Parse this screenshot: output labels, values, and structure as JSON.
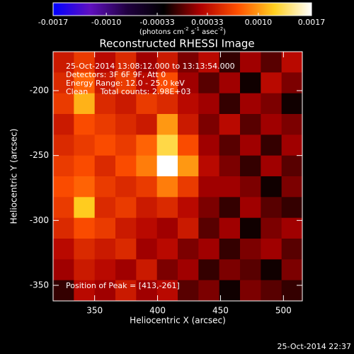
{
  "chart_data": {
    "type": "heatmap",
    "title": "Reconstructed RHESSI Image",
    "xlabel": "Heliocentric X (arcsec)",
    "ylabel": "Heliocentric Y (arcsec)",
    "annotations": [
      "25-Oct-2014 13:08:12.000 to 13:13:54.000",
      "Detectors: 3F 6F 9F, Att 0",
      "Energy Range: 12.0 - 25.0 keV",
      "Clean     Total counts: 2.98E+03"
    ],
    "peak_label": "Position of Peak = [413,-261]",
    "footer": "25-Oct-2014 22:37",
    "colorbar_units": [
      "(photons cm",
      "-2",
      " s",
      "-1",
      " asec",
      "-2",
      ")"
    ],
    "clim": [
      -0.0017,
      0.0017
    ],
    "cticks": [
      -0.0017,
      {
        "value": -0.001,
        "label": "-0.0010"
      },
      -0.00033,
      0.00033,
      {
        "value": 0.001,
        "label": "0.0010"
      },
      0.0017
    ],
    "colormap": [
      "#0000ff",
      "#6010c0",
      "#200040",
      "#000000",
      "#b00000",
      "#ff5000",
      "#ffd020",
      "#ffffff"
    ],
    "xlim": [
      317,
      515
    ],
    "ylim": [
      -362,
      -170
    ],
    "xticks": [
      350,
      400,
      450,
      500
    ],
    "yticks": [
      -200,
      -250,
      -300,
      -350
    ],
    "x": [
      325.25,
      341.75,
      358.25,
      374.75,
      391.25,
      407.75,
      424.25,
      440.75,
      457.25,
      473.75,
      490.25,
      506.75
    ],
    "y": [
      -178,
      -194,
      -210,
      -226,
      -242,
      -258,
      -274,
      -290,
      -306,
      -322,
      -338,
      -354
    ],
    "z": [
      [
        0.0004,
        0.0006,
        0.0003,
        0.0005,
        0.0002,
        0.0004,
        0.0001,
        0.0003,
        -0.0001,
        0.0002,
        0.0,
        0.0003
      ],
      [
        0.0005,
        0.0008,
        0.0004,
        0.0006,
        0.0003,
        0.0007,
        0.0002,
        0.0,
        0.0002,
        -0.0002,
        0.0003,
        0.0001
      ],
      [
        0.0006,
        0.0011,
        0.0005,
        0.0004,
        0.0006,
        0.0005,
        0.0003,
        0.0002,
        -0.0001,
        0.0002,
        0.0001,
        -0.0002
      ],
      [
        0.0004,
        0.0007,
        0.0006,
        0.0005,
        0.0004,
        0.001,
        0.0004,
        0.0001,
        0.0003,
        0.0,
        0.0002,
        0.0001
      ],
      [
        0.0005,
        0.0006,
        0.0007,
        0.0006,
        0.0008,
        0.0013,
        0.0007,
        0.0002,
        0.0,
        0.0002,
        -0.0001,
        0.0002
      ],
      [
        0.0006,
        0.0007,
        0.0005,
        0.0007,
        0.0009,
        0.0017,
        0.001,
        0.0003,
        0.0001,
        -0.0001,
        0.0002,
        0.0
      ],
      [
        0.0007,
        0.0008,
        0.0006,
        0.0005,
        0.0006,
        0.0009,
        0.0006,
        0.0002,
        0.0002,
        0.0001,
        -0.0002,
        0.0001
      ],
      [
        0.0006,
        0.0012,
        0.0005,
        0.0006,
        0.0004,
        0.0005,
        0.0003,
        0.0001,
        -0.0001,
        0.0002,
        0.0,
        -0.0001
      ],
      [
        0.0005,
        0.0007,
        0.0006,
        0.0004,
        0.0003,
        0.0002,
        0.0004,
        0.0,
        0.0002,
        -0.0002,
        0.0001,
        0.0002
      ],
      [
        0.0003,
        0.0005,
        0.0004,
        0.0005,
        0.0002,
        0.0003,
        0.0001,
        0.0002,
        -0.0001,
        0.0001,
        0.0002,
        0.0
      ],
      [
        0.0002,
        0.0004,
        0.0003,
        0.0002,
        0.0004,
        0.0001,
        0.0002,
        -0.0001,
        0.0001,
        0.0,
        -0.0002,
        0.0001
      ],
      [
        -0.0001,
        0.0003,
        0.0002,
        0.0004,
        0.0002,
        0.0003,
        0.0,
        0.0001,
        -0.0002,
        0.0001,
        0.0,
        -0.0001
      ]
    ]
  }
}
